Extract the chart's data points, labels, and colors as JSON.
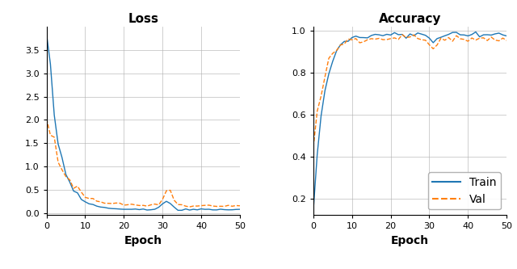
{
  "title_loss": "Loss",
  "title_acc": "Accuracy",
  "xlabel": "Epoch",
  "n_epochs": 50,
  "loss_ylim": [
    -0.05,
    4.0
  ],
  "acc_ylim": [
    0.12,
    1.02
  ],
  "loss_yticks": [
    0.0,
    0.5,
    1.0,
    1.5,
    2.0,
    2.5,
    3.0,
    3.5
  ],
  "acc_yticks": [
    0.2,
    0.4,
    0.6,
    0.8,
    1.0
  ],
  "xticks": [
    0,
    10,
    20,
    30,
    40,
    50
  ],
  "train_color": "#1f77b4",
  "val_color": "#ff7f0e",
  "legend_labels": [
    "Train",
    "Val"
  ],
  "grid_color": "#b0b0b0",
  "bg_color": "#ffffff",
  "title_fontsize": 11,
  "label_fontsize": 10,
  "tick_fontsize": 8,
  "legend_fontsize": 10
}
